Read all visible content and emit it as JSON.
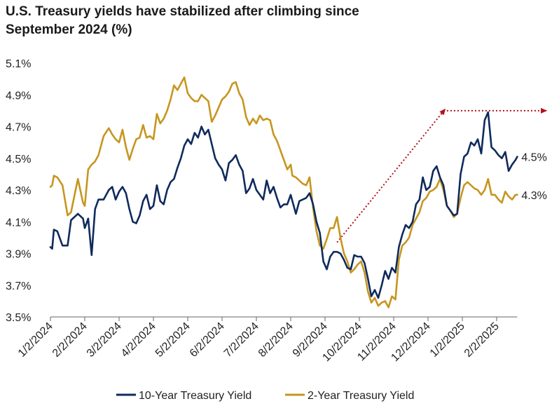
{
  "title_lines": [
    "U.S. Treasury yields have stabilized after climbing since",
    "September 2024 (%)"
  ],
  "colors": {
    "ten_year": "#0f2a5c",
    "two_year": "#c6961f",
    "arrow": "#b3111b",
    "axis": "#666666",
    "text": "#222222"
  },
  "chart_data": {
    "type": "line",
    "title": "U.S. Treasury yields have stabilized after climbing since September 2024 (%)",
    "xlabel": "",
    "ylabel": "",
    "ylim": [
      3.5,
      5.1
    ],
    "yticks": [
      3.5,
      3.7,
      3.9,
      4.1,
      4.3,
      4.5,
      4.7,
      4.9,
      5.1
    ],
    "ytick_labels": [
      "3.5%",
      "3.7%",
      "3.9%",
      "4.1%",
      "4.3%",
      "4.5%",
      "4.7%",
      "4.9%",
      "5.1%"
    ],
    "xlim_months": [
      0,
      13.6
    ],
    "xticks": [
      0,
      1,
      2,
      3,
      4,
      5,
      6,
      7,
      8,
      9,
      10,
      11,
      12,
      13
    ],
    "xtick_labels": [
      "1/2/2024",
      "2/2/2024",
      "3/2/2024",
      "4/2/2024",
      "5/2/2024",
      "6/2/2024",
      "7/2/2024",
      "8/2/2024",
      "9/2/2024",
      "10/2/2024",
      "11/2/2024",
      "12/2/2024",
      "1/2/2025",
      "2/2/2025"
    ],
    "legend": "bottom",
    "series": [
      {
        "name": "10-Year Treasury Yield",
        "end_label": "4.5%",
        "x": [
          0,
          0.05,
          0.1,
          0.2,
          0.35,
          0.5,
          0.6,
          0.8,
          0.95,
          1.0,
          1.1,
          1.2,
          1.3,
          1.4,
          1.55,
          1.7,
          1.8,
          1.9,
          2.0,
          2.1,
          2.2,
          2.3,
          2.4,
          2.5,
          2.6,
          2.7,
          2.8,
          2.9,
          3.0,
          3.1,
          3.2,
          3.3,
          3.4,
          3.5,
          3.6,
          3.7,
          3.8,
          3.9,
          4.0,
          4.1,
          4.2,
          4.3,
          4.4,
          4.5,
          4.6,
          4.7,
          4.8,
          4.9,
          5.0,
          5.1,
          5.2,
          5.3,
          5.4,
          5.5,
          5.6,
          5.7,
          5.8,
          5.9,
          6.0,
          6.1,
          6.2,
          6.3,
          6.4,
          6.5,
          6.6,
          6.7,
          6.8,
          6.9,
          7.0,
          7.05,
          7.15,
          7.25,
          7.35,
          7.45,
          7.55,
          7.65,
          7.75,
          7.85,
          7.95,
          8.05,
          8.15,
          8.25,
          8.35,
          8.45,
          8.55,
          8.65,
          8.75,
          8.85,
          8.95,
          9.05,
          9.15,
          9.25,
          9.35,
          9.45,
          9.55,
          9.65,
          9.75,
          9.85,
          9.95,
          10.05,
          10.15,
          10.25,
          10.35,
          10.45,
          10.55,
          10.65,
          10.75,
          10.85,
          10.95,
          11.05,
          11.15,
          11.25,
          11.35,
          11.45,
          11.55,
          11.65,
          11.75,
          11.85,
          11.95,
          12.05,
          12.15,
          12.25,
          12.35,
          12.45,
          12.55,
          12.65,
          12.75,
          12.85,
          12.95,
          13.05,
          13.15,
          13.25,
          13.35,
          13.45,
          13.55
        ],
        "values": [
          3.94,
          3.93,
          4.05,
          4.04,
          3.95,
          3.95,
          4.11,
          4.15,
          4.12,
          4.06,
          4.12,
          3.89,
          4.18,
          4.24,
          4.24,
          4.3,
          4.32,
          4.24,
          4.29,
          4.32,
          4.28,
          4.18,
          4.1,
          4.09,
          4.14,
          4.23,
          4.27,
          4.18,
          4.2,
          4.33,
          4.23,
          4.21,
          4.3,
          4.35,
          4.37,
          4.44,
          4.5,
          4.58,
          4.62,
          4.59,
          4.66,
          4.63,
          4.7,
          4.65,
          4.68,
          4.59,
          4.5,
          4.46,
          4.43,
          4.36,
          4.47,
          4.49,
          4.52,
          4.46,
          4.42,
          4.28,
          4.31,
          4.37,
          4.3,
          4.27,
          4.24,
          4.36,
          4.28,
          4.32,
          4.25,
          4.19,
          4.21,
          4.21,
          4.27,
          4.23,
          4.15,
          4.23,
          4.24,
          4.25,
          4.28,
          4.21,
          4.1,
          4.03,
          3.85,
          3.8,
          3.88,
          3.91,
          3.91,
          3.9,
          3.86,
          3.81,
          3.8,
          3.89,
          3.88,
          3.88,
          3.84,
          3.74,
          3.63,
          3.67,
          3.62,
          3.7,
          3.79,
          3.74,
          3.81,
          3.78,
          3.94,
          4.02,
          4.08,
          4.06,
          4.1,
          4.21,
          4.24,
          4.38,
          4.3,
          4.32,
          4.42,
          4.45,
          4.38,
          4.33,
          4.2,
          4.17,
          4.14,
          4.15,
          4.4,
          4.51,
          4.53,
          4.6,
          4.58,
          4.62,
          4.53,
          4.74,
          4.79,
          4.57,
          4.55,
          4.52,
          4.5,
          4.54,
          4.42,
          4.46,
          4.49
        ],
        "last_x": 13.6,
        "last_value": 4.51
      },
      {
        "name": "2-Year Treasury Yield",
        "end_label": "4.3%",
        "x": [
          0,
          0.05,
          0.1,
          0.2,
          0.35,
          0.5,
          0.6,
          0.8,
          0.95,
          1.0,
          1.1,
          1.2,
          1.3,
          1.4,
          1.55,
          1.7,
          1.8,
          1.9,
          2.0,
          2.1,
          2.2,
          2.3,
          2.4,
          2.5,
          2.6,
          2.7,
          2.8,
          2.9,
          3.0,
          3.1,
          3.2,
          3.3,
          3.4,
          3.5,
          3.6,
          3.7,
          3.8,
          3.9,
          4.0,
          4.1,
          4.2,
          4.3,
          4.4,
          4.5,
          4.6,
          4.7,
          4.8,
          4.9,
          5.0,
          5.1,
          5.2,
          5.3,
          5.4,
          5.5,
          5.6,
          5.7,
          5.8,
          5.9,
          6.0,
          6.1,
          6.2,
          6.3,
          6.4,
          6.5,
          6.6,
          6.7,
          6.8,
          6.9,
          7.0,
          7.05,
          7.15,
          7.25,
          7.35,
          7.45,
          7.55,
          7.65,
          7.75,
          7.85,
          7.95,
          8.05,
          8.15,
          8.25,
          8.35,
          8.45,
          8.55,
          8.65,
          8.75,
          8.85,
          8.95,
          9.05,
          9.15,
          9.25,
          9.35,
          9.45,
          9.55,
          9.65,
          9.75,
          9.85,
          9.95,
          10.05,
          10.15,
          10.25,
          10.35,
          10.45,
          10.55,
          10.65,
          10.75,
          10.85,
          10.95,
          11.05,
          11.15,
          11.25,
          11.35,
          11.45,
          11.55,
          11.65,
          11.75,
          11.85,
          11.95,
          12.05,
          12.15,
          12.25,
          12.35,
          12.45,
          12.55,
          12.65,
          12.75,
          12.85,
          12.95,
          13.05,
          13.15,
          13.25,
          13.35,
          13.45,
          13.55
        ],
        "values": [
          4.32,
          4.33,
          4.39,
          4.38,
          4.33,
          4.14,
          4.16,
          4.37,
          4.22,
          4.2,
          4.43,
          4.46,
          4.48,
          4.52,
          4.64,
          4.69,
          4.65,
          4.62,
          4.6,
          4.68,
          4.57,
          4.49,
          4.56,
          4.62,
          4.63,
          4.71,
          4.63,
          4.64,
          4.62,
          4.78,
          4.72,
          4.75,
          4.8,
          4.87,
          4.96,
          4.93,
          4.97,
          5.01,
          4.91,
          4.88,
          4.86,
          4.86,
          4.9,
          4.88,
          4.86,
          4.73,
          4.77,
          4.82,
          4.87,
          4.89,
          4.92,
          4.97,
          4.98,
          4.91,
          4.87,
          4.76,
          4.71,
          4.75,
          4.72,
          4.77,
          4.74,
          4.75,
          4.74,
          4.65,
          4.61,
          4.55,
          4.49,
          4.43,
          4.46,
          4.39,
          4.38,
          4.36,
          4.34,
          4.33,
          4.38,
          4.19,
          4.04,
          3.95,
          3.93,
          3.99,
          4.06,
          4.06,
          4.13,
          4.0,
          3.9,
          3.85,
          3.78,
          3.8,
          3.83,
          3.85,
          3.78,
          3.66,
          3.59,
          3.62,
          3.57,
          3.59,
          3.6,
          3.56,
          3.63,
          3.61,
          3.86,
          3.95,
          3.97,
          4.0,
          4.08,
          4.12,
          4.16,
          4.23,
          4.25,
          4.29,
          4.3,
          4.32,
          4.37,
          4.3,
          4.2,
          4.17,
          4.13,
          4.15,
          4.25,
          4.33,
          4.35,
          4.33,
          4.31,
          4.3,
          4.27,
          4.3,
          4.37,
          4.27,
          4.27,
          4.24,
          4.22,
          4.29,
          4.26,
          4.24,
          4.27
        ],
        "last_x": 13.6,
        "last_value": 4.27
      }
    ],
    "annotations": [
      {
        "kind": "dotted-arrow",
        "description": "rising trend",
        "from": {
          "x": 8.35,
          "y": 3.97
        },
        "to": {
          "x": 11.5,
          "y": 4.81
        }
      },
      {
        "kind": "dotted-arrow",
        "description": "level",
        "from": {
          "x": 11.55,
          "y": 4.8
        },
        "to": {
          "x": 14.45,
          "y": 4.8
        }
      }
    ]
  },
  "legend_items": [
    {
      "label": "10-Year Treasury Yield"
    },
    {
      "label": "2-Year Treasury Yield"
    }
  ]
}
